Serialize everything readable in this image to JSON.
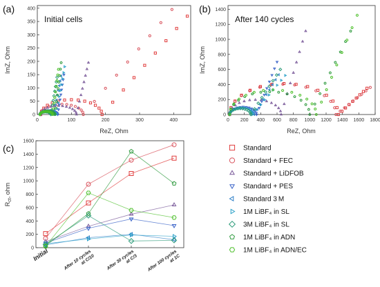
{
  "panels": {
    "a": {
      "letter": "(a)",
      "inset_title": "Initial cells"
    },
    "b": {
      "letter": "(b)",
      "inset_title": "After 140 cycles"
    },
    "c": {
      "letter": "(c)"
    }
  },
  "colors": {
    "Standard": "#e03c3c",
    "Standard + FEC": "#d8505a",
    "Standard + LiDFOB": "#7a5a9a",
    "Standard + PES": "#3a63c8",
    "Standard 3 M": "#2f80c8",
    "1M LiBF4 in SL": "#2aa0c8",
    "3M LiBF4 in SL": "#2a9a78",
    "1M LiBF4 in ADN": "#2e9a3e",
    "1M LiBF4 in ADN/EC": "#4cbf2a"
  },
  "legend": [
    {
      "label": "Standard",
      "marker": "square"
    },
    {
      "label": "Standard + FEC",
      "marker": "circle"
    },
    {
      "label": "Standard + LiDFOB",
      "marker": "triangle-up"
    },
    {
      "label": "Standard + PES",
      "marker": "triangle-down"
    },
    {
      "label": "Standard 3 M",
      "marker": "triangle-left"
    },
    {
      "label": "1M LiBF₄ in SL",
      "marker": "triangle-right"
    },
    {
      "label": "3M LiBF₄ in SL",
      "marker": "diamond"
    },
    {
      "label": "1M LiBF₄ in ADN",
      "marker": "pentagon"
    },
    {
      "label": "1M LiBF₄ in ADN/EC",
      "marker": "hexagon"
    }
  ],
  "chart_data": [
    {
      "panel": "a",
      "type": "scatter",
      "title": "Initial cells",
      "xlabel": "ReZ, Ohm",
      "ylabel": "ImZ, Ohm",
      "xlim": [
        0,
        450
      ],
      "ylim": [
        0,
        410
      ],
      "xticks": [
        0,
        100,
        200,
        300,
        400
      ],
      "yticks": [
        0,
        50,
        100,
        150,
        200,
        250,
        300,
        350,
        400
      ],
      "series": [
        {
          "name": "Standard",
          "arc": [
            10,
            190
          ],
          "tail": [
            440,
            370
          ],
          "marker": "square"
        },
        {
          "name": "Standard + FEC",
          "arc": [
            10,
            135
          ],
          "tail": [
            395,
            395
          ],
          "marker": "circle"
        },
        {
          "name": "Standard + LiDFOB",
          "arc": [
            10,
            115
          ],
          "tail": [
            150,
            195
          ],
          "marker": "triangle-up"
        },
        {
          "name": "Standard + PES",
          "arc": [
            8,
            60
          ],
          "tail": [
            78,
            150
          ],
          "marker": "triangle-down"
        },
        {
          "name": "Standard 3 M",
          "arc": [
            8,
            48
          ],
          "tail": [
            70,
            145
          ],
          "marker": "triangle-left"
        },
        {
          "name": "1M LiBF4 in SL",
          "arc": [
            8,
            55
          ],
          "tail": [
            80,
            180
          ],
          "marker": "triangle-right"
        },
        {
          "name": "3M LiBF4 in SL",
          "arc": [
            8,
            40
          ],
          "tail": [
            58,
            140
          ],
          "marker": "diamond"
        },
        {
          "name": "1M LiBF4 in ADN",
          "arc": [
            8,
            52
          ],
          "tail": [
            70,
            195
          ],
          "marker": "pentagon"
        },
        {
          "name": "1M LiBF4 in ADN/EC",
          "arc": [
            8,
            45
          ],
          "tail": [
            62,
            170
          ],
          "marker": "hexagon"
        }
      ]
    },
    {
      "panel": "b",
      "type": "scatter",
      "title": "After 140 cycles",
      "xlabel": "ReZ, Ohm",
      "ylabel": "ImZ, Ohm",
      "xlim": [
        0,
        1800
      ],
      "ylim": [
        0,
        1450
      ],
      "xticks": [
        0,
        200,
        400,
        600,
        800,
        1000,
        1200,
        1400,
        1600,
        1800
      ],
      "yticks": [
        0,
        200,
        400,
        600,
        800,
        1000,
        1200,
        1400
      ],
      "series": [
        {
          "name": "Standard",
          "arc": [
            20,
            1350
          ],
          "tail": [
            1700,
            350
          ],
          "marker": "square"
        },
        {
          "name": "Standard + FEC",
          "arc": [
            20,
            1320
          ],
          "tail": [
            1740,
            360
          ],
          "marker": "circle"
        },
        {
          "name": "Standard + LiDFOB",
          "arc": [
            20,
            650
          ],
          "tail": [
            950,
            1110
          ],
          "marker": "triangle-up"
        },
        {
          "name": "Standard + PES",
          "arc": [
            20,
            350
          ],
          "tail": [
            600,
            700
          ],
          "marker": "triangle-down"
        },
        {
          "name": "Standard 3 M",
          "arc": [
            20,
            320
          ],
          "tail": [
            620,
            530
          ],
          "marker": "triangle-left"
        },
        {
          "name": "1M LiBF4 in SL",
          "arc": [
            20,
            300
          ],
          "tail": [
            700,
            520
          ],
          "marker": "triangle-right"
        },
        {
          "name": "3M LiBF4 in SL",
          "arc": [
            20,
            280
          ],
          "tail": [
            640,
            600
          ],
          "marker": "diamond"
        },
        {
          "name": "1M LiBF4 in ADN",
          "arc": [
            20,
            1000
          ],
          "tail": [
            1500,
            1110
          ],
          "marker": "pentagon"
        },
        {
          "name": "1M LiBF4 in ADN/EC",
          "arc": [
            20,
            1080
          ],
          "tail": [
            1580,
            1320
          ],
          "marker": "hexagon"
        }
      ]
    },
    {
      "panel": "c",
      "type": "line",
      "ylabel": "R",
      "ylabel_sub": "ct",
      "ylabel_unit": ", ohm",
      "categories": [
        "Initial",
        "After 10 cycles at C/10",
        "After 30 cycles at C/3",
        "After 100 cycles at 1C"
      ],
      "category_lines": [
        [
          "Initial"
        ],
        [
          "After 10 cycles",
          "at C/10"
        ],
        [
          "After 30 cycles",
          "at C/3"
        ],
        [
          "After 100 cycles",
          "at 1C"
        ]
      ],
      "ylim": [
        0,
        1600
      ],
      "yticks": [
        0,
        200,
        400,
        600,
        800,
        1000,
        1200,
        1400,
        1600
      ],
      "series": [
        {
          "name": "Standard",
          "values": [
            210,
            670,
            1110,
            1340
          ],
          "marker": "square"
        },
        {
          "name": "Standard + FEC",
          "values": [
            140,
            950,
            1310,
            1540
          ],
          "marker": "circle"
        },
        {
          "name": "Standard + LiDFOB",
          "values": [
            90,
            320,
            500,
            640
          ],
          "marker": "triangle-up"
        },
        {
          "name": "Standard + PES",
          "values": [
            70,
            290,
            430,
            330
          ],
          "marker": "triangle-down"
        },
        {
          "name": "Standard 3 M",
          "values": [
            40,
            150,
            200,
            120
          ],
          "marker": "triangle-left"
        },
        {
          "name": "1M LiBF4 in SL",
          "values": [
            60,
            130,
            190,
            170
          ],
          "marker": "triangle-right"
        },
        {
          "name": "3M LiBF4 in SL",
          "values": [
            50,
            480,
            100,
            110
          ],
          "marker": "diamond"
        },
        {
          "name": "1M LiBF4 in ADN",
          "values": [
            30,
            510,
            1440,
            960
          ],
          "marker": "pentagon"
        },
        {
          "name": "1M LiBF4 in ADN/EC",
          "values": [
            20,
            820,
            560,
            450
          ],
          "marker": "hexagon"
        }
      ]
    }
  ]
}
